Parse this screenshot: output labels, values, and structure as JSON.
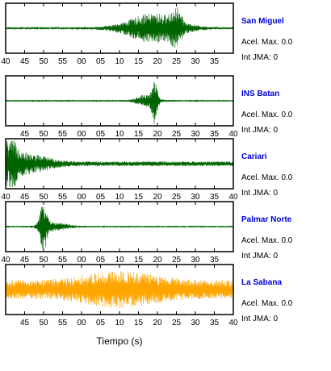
{
  "figure": {
    "xlabel": "Tiempo (s)",
    "station_color": "#0000dd"
  },
  "chart_data": [
    {
      "type": "line",
      "title": "San Miguel",
      "accel_label": "Acel. Max. 0.0",
      "int_label": "Int JMA: 0",
      "color": "#006400",
      "tick_labels": [
        "40",
        "45",
        "50",
        "55",
        "00",
        "05",
        "10",
        "15",
        "20",
        "25",
        "30",
        "35"
      ],
      "tick_positions": [
        40,
        45,
        50,
        55,
        60,
        65,
        70,
        75,
        80,
        85,
        90,
        95
      ],
      "xlim": [
        40,
        100
      ],
      "ylim": [
        -1,
        1
      ],
      "noise_level": 0.05,
      "bursts": [
        {
          "center": 79,
          "width": 8,
          "amplitude": 0.6
        },
        {
          "center": 85,
          "width": 1.5,
          "amplitude": 0.55
        }
      ]
    },
    {
      "type": "line",
      "title": "INS Batan",
      "accel_label": "Acel. Max. 0.0",
      "int_label": "Int JMA: 0",
      "color": "#006400",
      "tick_labels": [
        "45",
        "50",
        "55",
        "00",
        "05",
        "10",
        "15",
        "20",
        "25",
        "30",
        "35",
        "40"
      ],
      "tick_positions": [
        45,
        50,
        55,
        60,
        65,
        70,
        75,
        80,
        85,
        90,
        95,
        100
      ],
      "xlim": [
        40,
        100
      ],
      "ylim": [
        -1,
        1
      ],
      "noise_level": 0.03,
      "bursts": [
        {
          "center": 77,
          "width": 3,
          "amplitude": 0.25
        },
        {
          "center": 79.3,
          "width": 0.8,
          "amplitude": 0.9
        }
      ]
    },
    {
      "type": "line",
      "title": "Cariari",
      "accel_label": "Acel. Max. 0.0",
      "int_label": "Int JMA: 0",
      "color": "#006400",
      "tick_labels": [
        "40",
        "45",
        "50",
        "55",
        "00",
        "05",
        "10",
        "15",
        "20",
        "25",
        "30",
        "35",
        "40"
      ],
      "tick_positions": [
        40,
        45,
        50,
        55,
        60,
        65,
        70,
        75,
        80,
        85,
        90,
        95,
        100
      ],
      "xlim": [
        40,
        100
      ],
      "ylim": [
        -1,
        1
      ],
      "noise_level": 0.1,
      "bursts": [
        {
          "center": 41,
          "width": 3,
          "amplitude": 0.9
        },
        {
          "center": 47,
          "width": 6,
          "amplitude": 0.3
        }
      ]
    },
    {
      "type": "line",
      "title": "Palmar Norte",
      "accel_label": "Acel. Max. 0.0",
      "int_label": "Int JMA: 0",
      "color": "#006400",
      "tick_labels": [
        "40",
        "45",
        "50",
        "55",
        "00",
        "05",
        "10",
        "15",
        "20",
        "25",
        "30",
        "35"
      ],
      "tick_positions": [
        40,
        45,
        50,
        55,
        60,
        65,
        70,
        75,
        80,
        85,
        90,
        95
      ],
      "xlim": [
        40,
        100
      ],
      "ylim": [
        -1,
        1
      ],
      "noise_level": 0.03,
      "bursts": [
        {
          "center": 50,
          "width": 1.2,
          "amplitude": 0.95
        },
        {
          "center": 53,
          "width": 4,
          "amplitude": 0.15
        }
      ]
    },
    {
      "type": "line",
      "title": "La Sabana",
      "accel_label": "Acel. Max. 0.0",
      "int_label": "Int JMA: 0",
      "color": "#ffa500",
      "tick_labels": [
        "45",
        "50",
        "55",
        "00",
        "05",
        "10",
        "15",
        "20",
        "25",
        "30",
        "35",
        "40"
      ],
      "tick_positions": [
        45,
        50,
        55,
        60,
        65,
        70,
        75,
        80,
        85,
        90,
        95,
        100
      ],
      "xlim": [
        40,
        100
      ],
      "ylim": [
        -1,
        1
      ],
      "noise_level": 0.4,
      "bursts": [
        {
          "center": 70,
          "width": 12,
          "amplitude": 0.4
        }
      ]
    }
  ]
}
